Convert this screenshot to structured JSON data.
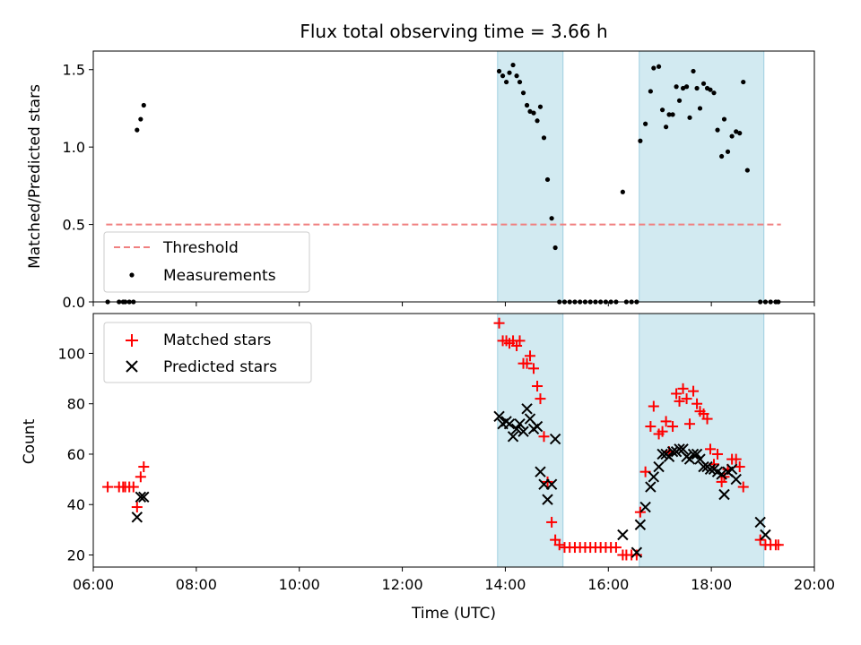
{
  "chart_data": {
    "type": "scatter",
    "title": "Flux total observing time = 3.66 h",
    "xlabel": "Time (UTC)",
    "xlim": [
      6.0,
      20.0
    ],
    "x_tick_labels": [
      "06:00",
      "08:00",
      "10:00",
      "12:00",
      "14:00",
      "16:00",
      "18:00",
      "20:00"
    ],
    "x_ticks": [
      6,
      8,
      10,
      12,
      14,
      16,
      18,
      20
    ],
    "shaded_intervals": [
      [
        13.85,
        15.12
      ],
      [
        16.6,
        19.02
      ]
    ],
    "shade_color": "#add8e6",
    "top_panel": {
      "ylabel": "Matched/Predicted stars",
      "ylim": [
        0,
        1.62
      ],
      "y_ticks": [
        0.0,
        0.5,
        1.0,
        1.5
      ],
      "y_tick_labels": [
        "0.0",
        "0.5",
        "1.0",
        "1.5"
      ],
      "legend": [
        "Threshold",
        "Measurements"
      ],
      "legend_position": "lower-left",
      "threshold": {
        "name": "Threshold",
        "value": 0.5,
        "x_range": [
          6.25,
          19.35
        ],
        "color": "#f08080"
      },
      "measurements": {
        "name": "Measurements",
        "color": "#000000",
        "points": [
          [
            6.28,
            0.0
          ],
          [
            6.5,
            0.0
          ],
          [
            6.58,
            0.0
          ],
          [
            6.62,
            0.0
          ],
          [
            6.7,
            0.0
          ],
          [
            6.78,
            0.0
          ],
          [
            6.85,
            1.11
          ],
          [
            6.92,
            1.18
          ],
          [
            6.98,
            1.27
          ],
          [
            13.88,
            1.49
          ],
          [
            13.95,
            1.46
          ],
          [
            14.02,
            1.42
          ],
          [
            14.08,
            1.48
          ],
          [
            14.15,
            1.53
          ],
          [
            14.22,
            1.46
          ],
          [
            14.28,
            1.42
          ],
          [
            14.35,
            1.35
          ],
          [
            14.42,
            1.27
          ],
          [
            14.48,
            1.23
          ],
          [
            14.55,
            1.22
          ],
          [
            14.62,
            1.17
          ],
          [
            14.68,
            1.26
          ],
          [
            14.75,
            1.06
          ],
          [
            14.82,
            0.79
          ],
          [
            14.9,
            0.54
          ],
          [
            14.97,
            0.35
          ],
          [
            15.05,
            0.0
          ],
          [
            15.15,
            0.0
          ],
          [
            15.25,
            0.0
          ],
          [
            15.35,
            0.0
          ],
          [
            15.45,
            0.0
          ],
          [
            15.55,
            0.0
          ],
          [
            15.65,
            0.0
          ],
          [
            15.75,
            0.0
          ],
          [
            15.85,
            0.0
          ],
          [
            15.95,
            0.0
          ],
          [
            16.05,
            0.0
          ],
          [
            16.15,
            0.0
          ],
          [
            16.28,
            0.71
          ],
          [
            16.35,
            0.0
          ],
          [
            16.45,
            0.0
          ],
          [
            16.55,
            0.0
          ],
          [
            16.62,
            1.04
          ],
          [
            16.72,
            1.15
          ],
          [
            16.82,
            1.36
          ],
          [
            16.88,
            1.51
          ],
          [
            16.98,
            1.52
          ],
          [
            17.05,
            1.24
          ],
          [
            17.12,
            1.13
          ],
          [
            17.18,
            1.21
          ],
          [
            17.25,
            1.21
          ],
          [
            17.32,
            1.39
          ],
          [
            17.38,
            1.3
          ],
          [
            17.45,
            1.38
          ],
          [
            17.52,
            1.39
          ],
          [
            17.58,
            1.19
          ],
          [
            17.65,
            1.49
          ],
          [
            17.72,
            1.38
          ],
          [
            17.78,
            1.25
          ],
          [
            17.85,
            1.41
          ],
          [
            17.92,
            1.38
          ],
          [
            17.98,
            1.37
          ],
          [
            18.05,
            1.35
          ],
          [
            18.12,
            1.11
          ],
          [
            18.2,
            0.94
          ],
          [
            18.25,
            1.18
          ],
          [
            18.32,
            0.97
          ],
          [
            18.4,
            1.07
          ],
          [
            18.48,
            1.1
          ],
          [
            18.55,
            1.09
          ],
          [
            18.62,
            1.42
          ],
          [
            18.7,
            0.85
          ],
          [
            18.95,
            0.0
          ],
          [
            19.05,
            0.0
          ],
          [
            19.15,
            0.0
          ],
          [
            19.25,
            0.0
          ],
          [
            19.3,
            0.0
          ]
        ]
      }
    },
    "bottom_panel": {
      "ylabel": "Count",
      "ylim": [
        15.2,
        115.8
      ],
      "y_ticks": [
        20,
        40,
        60,
        80,
        100
      ],
      "y_tick_labels": [
        "20",
        "40",
        "60",
        "80",
        "100"
      ],
      "legend": [
        "Matched stars",
        "Predicted stars"
      ],
      "legend_position": "upper-left",
      "series": [
        {
          "name": "Matched stars",
          "marker": "+",
          "color": "#ff0000",
          "points": [
            [
              6.28,
              47
            ],
            [
              6.5,
              47
            ],
            [
              6.58,
              47
            ],
            [
              6.62,
              47
            ],
            [
              6.7,
              47
            ],
            [
              6.78,
              47
            ],
            [
              6.85,
              39
            ],
            [
              6.92,
              51
            ],
            [
              6.98,
              55
            ],
            [
              13.88,
              112
            ],
            [
              13.95,
              105
            ],
            [
              14.02,
              105
            ],
            [
              14.08,
              104
            ],
            [
              14.15,
              105
            ],
            [
              14.22,
              103
            ],
            [
              14.28,
              105
            ],
            [
              14.35,
              96
            ],
            [
              14.42,
              96
            ],
            [
              14.48,
              99
            ],
            [
              14.55,
              94
            ],
            [
              14.62,
              87
            ],
            [
              14.68,
              82
            ],
            [
              14.75,
              67
            ],
            [
              14.82,
              49
            ],
            [
              14.9,
              33
            ],
            [
              14.97,
              26
            ],
            [
              15.05,
              24
            ],
            [
              15.15,
              23
            ],
            [
              15.25,
              23
            ],
            [
              15.35,
              23
            ],
            [
              15.45,
              23
            ],
            [
              15.55,
              23
            ],
            [
              15.65,
              23
            ],
            [
              15.75,
              23
            ],
            [
              15.85,
              23
            ],
            [
              15.95,
              23
            ],
            [
              16.05,
              23
            ],
            [
              16.15,
              23
            ],
            [
              16.28,
              20
            ],
            [
              16.35,
              20
            ],
            [
              16.45,
              20
            ],
            [
              16.55,
              20
            ],
            [
              16.62,
              37
            ],
            [
              16.72,
              53
            ],
            [
              16.82,
              71
            ],
            [
              16.88,
              79
            ],
            [
              16.98,
              68
            ],
            [
              17.05,
              69
            ],
            [
              17.12,
              73
            ],
            [
              17.18,
              61
            ],
            [
              17.25,
              71
            ],
            [
              17.32,
              84
            ],
            [
              17.38,
              81
            ],
            [
              17.45,
              86
            ],
            [
              17.52,
              82
            ],
            [
              17.58,
              72
            ],
            [
              17.65,
              85
            ],
            [
              17.72,
              80
            ],
            [
              17.78,
              77
            ],
            [
              17.85,
              76
            ],
            [
              17.92,
              74
            ],
            [
              17.98,
              62
            ],
            [
              18.05,
              56
            ],
            [
              18.12,
              60
            ],
            [
              18.2,
              49
            ],
            [
              18.25,
              51
            ],
            [
              18.32,
              54
            ],
            [
              18.4,
              58
            ],
            [
              18.48,
              58
            ],
            [
              18.55,
              55
            ],
            [
              18.62,
              47
            ],
            [
              18.95,
              26
            ],
            [
              19.05,
              24
            ],
            [
              19.15,
              24
            ],
            [
              19.25,
              24
            ],
            [
              19.3,
              24
            ]
          ]
        },
        {
          "name": "Predicted stars",
          "marker": "x",
          "color": "#000000",
          "points": [
            [
              6.85,
              35
            ],
            [
              6.92,
              43
            ],
            [
              6.98,
              43
            ],
            [
              13.88,
              75
            ],
            [
              13.95,
              72
            ],
            [
              14.02,
              73
            ],
            [
              14.08,
              72
            ],
            [
              14.15,
              67
            ],
            [
              14.22,
              70
            ],
            [
              14.28,
              72
            ],
            [
              14.35,
              69
            ],
            [
              14.42,
              78
            ],
            [
              14.48,
              74
            ],
            [
              14.55,
              70
            ],
            [
              14.62,
              71
            ],
            [
              14.68,
              53
            ],
            [
              14.75,
              48
            ],
            [
              14.82,
              42
            ],
            [
              14.9,
              48
            ],
            [
              14.97,
              66
            ],
            [
              16.28,
              28
            ],
            [
              16.55,
              21
            ],
            [
              16.62,
              32
            ],
            [
              16.72,
              39
            ],
            [
              16.82,
              47
            ],
            [
              16.88,
              51
            ],
            [
              16.98,
              55
            ],
            [
              17.05,
              60
            ],
            [
              17.12,
              60
            ],
            [
              17.18,
              59
            ],
            [
              17.25,
              61
            ],
            [
              17.32,
              61
            ],
            [
              17.38,
              62
            ],
            [
              17.45,
              62
            ],
            [
              17.52,
              59
            ],
            [
              17.58,
              58
            ],
            [
              17.65,
              60
            ],
            [
              17.72,
              60
            ],
            [
              17.78,
              58
            ],
            [
              17.85,
              55
            ],
            [
              17.92,
              55
            ],
            [
              17.98,
              54
            ],
            [
              18.05,
              54
            ],
            [
              18.12,
              53
            ],
            [
              18.2,
              52
            ],
            [
              18.25,
              44
            ],
            [
              18.32,
              53
            ],
            [
              18.4,
              54
            ],
            [
              18.48,
              50
            ],
            [
              18.95,
              33
            ],
            [
              19.05,
              28
            ]
          ]
        }
      ]
    }
  }
}
